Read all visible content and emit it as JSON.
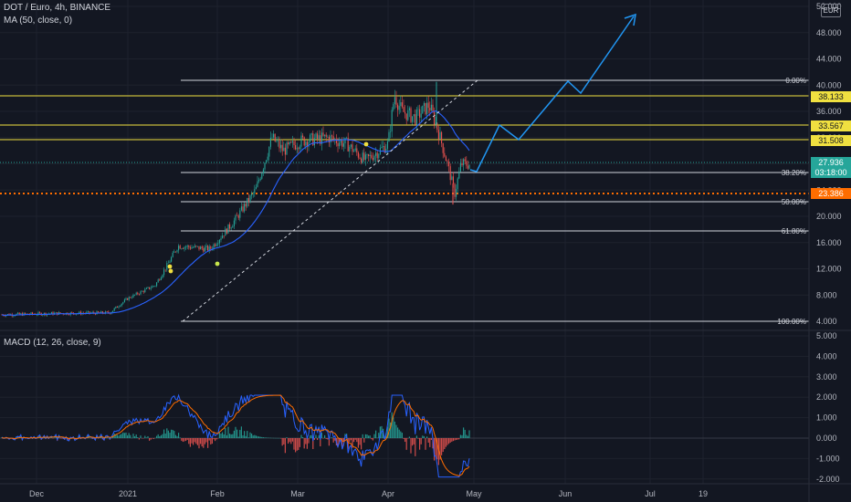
{
  "legend": {
    "symbol": "DOT / Euro, 4h, BINANCE",
    "ma": "MA (50, close, 0)",
    "macd": "MACD (12, 26, close, 9)"
  },
  "currency_label": "EUR",
  "price_axis": {
    "ticks": [
      "52.000",
      "48.000",
      "44.000",
      "40.000",
      "36.000",
      "32.000",
      "28.000",
      "24.000",
      "20.000",
      "16.000",
      "12.000",
      "8.000",
      "4.000"
    ]
  },
  "macd_axis": {
    "ticks": [
      "5.000",
      "4.000",
      "3.000",
      "2.000",
      "1.000",
      "0.000",
      "-1.000",
      "-2.000"
    ]
  },
  "time_axis": [
    "Dec",
    "2021",
    "Feb",
    "Mar",
    "Apr",
    "May",
    "Jun",
    "Jul",
    "19"
  ],
  "horizontal_levels": [
    {
      "label": "38.133",
      "kind": "yellow-line"
    },
    {
      "label": "33.567",
      "kind": "yellow-line"
    },
    {
      "label": "31.508",
      "kind": "yellow-line"
    }
  ],
  "fib_levels": [
    {
      "label": "0.00%"
    },
    {
      "label": "38.20%"
    },
    {
      "label": "50.00%"
    },
    {
      "label": "61.80%"
    },
    {
      "label": "100.00%"
    }
  ],
  "last_price": {
    "value": "27.936",
    "countdown": "03:18:00"
  },
  "support_price": "23.386",
  "colors": {
    "background": "#131722",
    "up": "#26a69a",
    "down": "#ef5350",
    "ma_line": "#2962ff",
    "projection": "#2196f3",
    "level_yellow": "#f0e040",
    "support_orange": "#ff6d00",
    "last_price_teal": "#26a69a",
    "macd_line": "#2962ff",
    "signal_line": "#ff6d00"
  }
}
